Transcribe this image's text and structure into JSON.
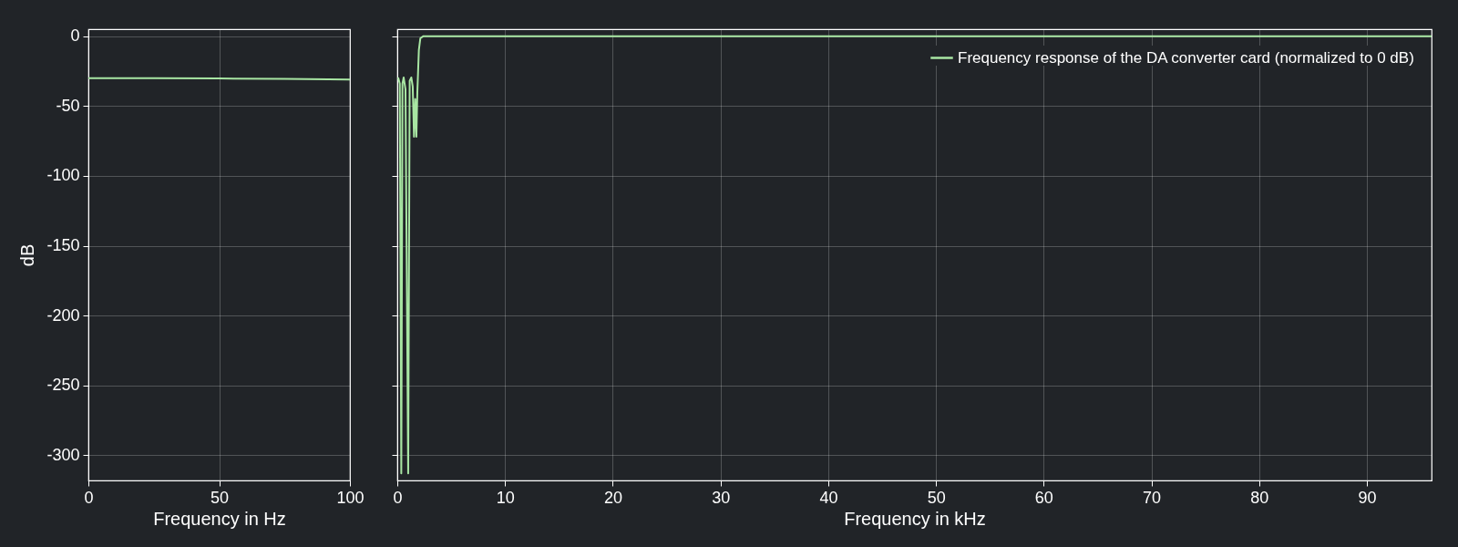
{
  "chart_data": [
    {
      "type": "line",
      "xlabel": "Frequency in Hz",
      "ylabel": "dB",
      "xlim": [
        0,
        100
      ],
      "xticks": [
        0,
        50,
        100
      ],
      "ylim": [
        -318,
        5
      ],
      "yticks": [
        -300,
        -250,
        -200,
        -150,
        -100,
        -50,
        0
      ],
      "grid": true,
      "legend": false,
      "series": [
        {
          "color": "#a8e6a3",
          "x": [
            0,
            25,
            50,
            75,
            100
          ],
          "values": [
            -30,
            -30.1,
            -30.3,
            -30.6,
            -31
          ]
        }
      ]
    },
    {
      "type": "line",
      "xlabel": "Frequency in kHz",
      "xlim": [
        0,
        96
      ],
      "xticks": [
        0,
        10,
        20,
        30,
        40,
        50,
        60,
        70,
        80,
        90
      ],
      "ylim": [
        -318,
        5
      ],
      "yticks": [
        -300,
        -250,
        -200,
        -150,
        -100,
        -50,
        0
      ],
      "grid": true,
      "tick_labels": "x",
      "legend": "top right",
      "series": [
        {
          "name": "Frequency response of the DA converter card (normalized to 0 dB)",
          "color": "#a8e6a3",
          "x": [
            0.08,
            0.23,
            0.37,
            0.48,
            0.59,
            0.76,
            1.01,
            1.15,
            1.3,
            1.43,
            1.55,
            1.66,
            1.77,
            1.86,
            2.0,
            2.14,
            2.42,
            10,
            50,
            96
          ],
          "values": [
            -29.6,
            -34,
            -313,
            -34,
            -29.6,
            -38,
            -313,
            -32,
            -29.6,
            -36,
            -72,
            -45,
            -72,
            -40,
            -10,
            -1.5,
            0,
            0,
            0,
            0
          ]
        }
      ]
    }
  ]
}
